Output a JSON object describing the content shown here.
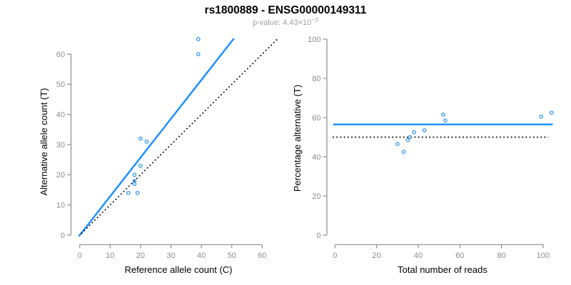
{
  "header": {
    "title": "rs1800889 - ENSG00000149311",
    "subtitle_prefix": "p-value: 4.43×10",
    "subtitle_exponent": "−3"
  },
  "colors": {
    "accent_blue": "#1E90FF",
    "axis_gray": "#8c8c8c",
    "reference_black": "#000000"
  },
  "chart_data": [
    {
      "type": "scatter",
      "xlabel": "Reference allele count (C)",
      "ylabel": "Alternative allele count (T)",
      "xticks": [
        0,
        10,
        20,
        30,
        40,
        50,
        60
      ],
      "yticks": [
        0,
        10,
        20,
        30,
        40,
        50,
        60
      ],
      "xlim": [
        0,
        65
      ],
      "ylim": [
        0,
        65
      ],
      "points": [
        [
          16,
          14
        ],
        [
          19,
          14
        ],
        [
          18,
          17
        ],
        [
          18,
          18
        ],
        [
          18,
          20
        ],
        [
          20,
          23
        ],
        [
          20,
          32
        ],
        [
          22,
          31
        ],
        [
          39,
          60
        ],
        [
          39,
          65
        ]
      ],
      "lines": [
        {
          "name": "fitted-ratio-line",
          "style": "solid",
          "color": "#1E90FF",
          "x1": -0.3,
          "y1": -0.4,
          "x2": 50.7,
          "y2": 65.2
        },
        {
          "name": "identity-line",
          "style": "dotted",
          "color": "#000000",
          "x1": 0.5,
          "y1": 0.5,
          "x2": 64.9,
          "y2": 64.9
        }
      ]
    },
    {
      "type": "scatter",
      "xlabel": "Total number of reads",
      "ylabel": "Percentage alternative (T)",
      "xticks": [
        0,
        20,
        40,
        60,
        80,
        100
      ],
      "yticks": [
        0,
        20,
        40,
        60,
        80,
        100
      ],
      "xlim": [
        0,
        105
      ],
      "ylim": [
        0,
        100
      ],
      "points": [
        [
          30,
          46.5
        ],
        [
          33,
          42.5
        ],
        [
          35,
          48.5
        ],
        [
          36,
          50
        ],
        [
          38,
          52.5
        ],
        [
          43,
          53.5
        ],
        [
          52,
          61.5
        ],
        [
          53,
          58.5
        ],
        [
          99,
          60.5
        ],
        [
          104,
          62.5
        ]
      ],
      "lines": [
        {
          "name": "mean-percentage-line",
          "style": "solid",
          "color": "#1E90FF",
          "x1": -0.8,
          "y1": 56.5,
          "x2": 104.6,
          "y2": 56.5
        },
        {
          "name": "fifty-percent-line",
          "style": "dotted",
          "color": "#000000",
          "x1": -1.1,
          "y1": 50,
          "x2": 102.5,
          "y2": 50
        }
      ]
    }
  ]
}
